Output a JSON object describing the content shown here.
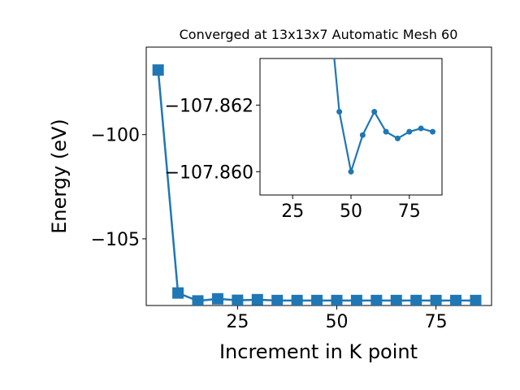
{
  "chart_data": [
    {
      "type": "line",
      "title": "Converged at 13x13x7 Automatic Mesh 60",
      "xlabel": "Increment in K point",
      "ylabel": "Energy (eV)",
      "xlim": [
        2.0,
        89.0
      ],
      "ylim": [
        -108.2,
        -95.8
      ],
      "x_ticks": [
        25,
        50,
        75
      ],
      "y_ticks": [
        -105,
        -100
      ],
      "x_tick_labels": [
        "25",
        "50",
        "75"
      ],
      "y_tick_labels": [
        "−105",
        "−100"
      ],
      "marker": "square",
      "color": "#1f77b4",
      "grid": false,
      "series": [
        {
          "x": [
            5,
            10,
            15,
            20,
            25,
            30,
            35,
            40,
            45,
            50,
            55,
            60,
            65,
            70,
            75,
            80,
            85
          ],
          "y": [
            -96.9,
            -107.6,
            -107.98,
            -107.88,
            -107.95,
            -107.92,
            -107.96,
            -107.96,
            -107.96,
            -107.96,
            -107.96,
            -107.96,
            -107.96,
            -107.96,
            -107.96,
            -107.96,
            -107.96
          ]
        }
      ]
    },
    {
      "type": "line",
      "title": "",
      "xlabel": "",
      "ylabel": "",
      "xlim": [
        11.0,
        89.0
      ],
      "ylim": [
        -107.8593,
        -107.8634
      ],
      "x_ticks": [
        25,
        50,
        75
      ],
      "y_ticks": [
        -107.862,
        -107.86
      ],
      "x_tick_labels": [
        "25",
        "50",
        "75"
      ],
      "y_tick_labels": [
        "−107.862",
        "−107.860"
      ],
      "marker": "circle",
      "color": "#1f77b4",
      "grid": false,
      "series": [
        {
          "x": [
            40,
            45,
            50,
            55,
            60,
            65,
            70,
            75,
            80,
            85
          ],
          "y": [
            -107.8655,
            -107.8618,
            -107.86,
            -107.8611,
            -107.8618,
            -107.8612,
            -107.861,
            -107.8612,
            -107.8613,
            -107.8612
          ]
        }
      ]
    }
  ]
}
